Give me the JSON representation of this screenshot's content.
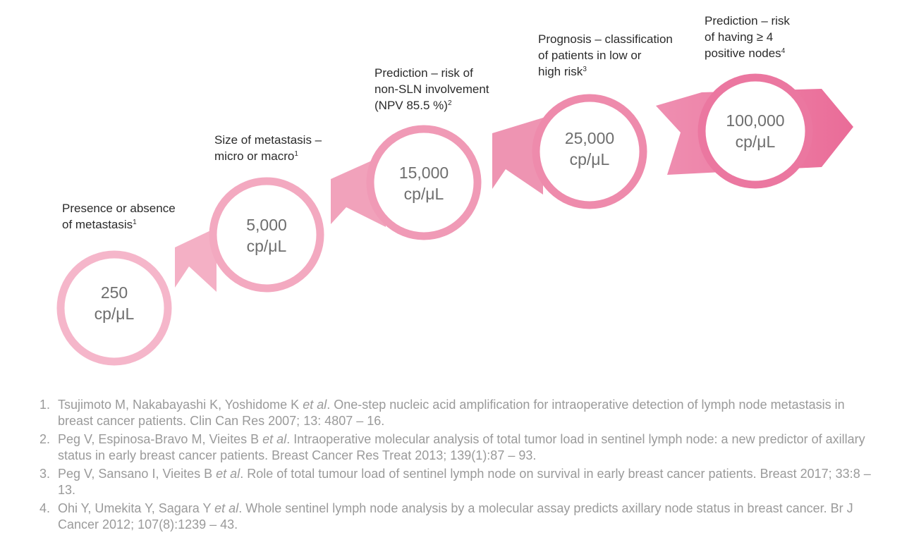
{
  "steps": [
    {
      "label_lines": [
        "Presence or absence",
        "of metastasis"
      ],
      "footnote": "1",
      "value": "250",
      "unit": "cp/μL"
    },
    {
      "label_lines": [
        "Size of metastasis –",
        "micro or macro"
      ],
      "footnote": "1",
      "value": "5,000",
      "unit": "cp/μL"
    },
    {
      "label_lines": [
        "Prediction – risk of",
        "non-SLN involvement",
        "(NPV 85.5 %)"
      ],
      "footnote": "2",
      "value": "15,000",
      "unit": "cp/μL"
    },
    {
      "label_lines": [
        "Prognosis – classification",
        "of patients in low or",
        "high risk"
      ],
      "footnote": "3",
      "value": "25,000",
      "unit": "cp/μL"
    },
    {
      "label_lines": [
        "Prediction – risk",
        "of having ≥ 4",
        "positive nodes"
      ],
      "footnote": "4",
      "value": "100,000",
      "unit": "cp/μL"
    }
  ],
  "colors": {
    "step1": "#f5b6ca",
    "step2": "#f3a9c0",
    "step3": "#f09ab6",
    "step4": "#ee8bac",
    "step5": "#eb77a0",
    "label_text": "#2b2b2b",
    "value_text": "#6e6e6e",
    "reference_text": "#9a9a9a"
  },
  "references": [
    {
      "number": "1.",
      "authors": "Tsujimoto M, Nakabayashi K, Yoshidome K",
      "etal": "et al",
      "rest": ". One-step nucleic acid amplification for intraoperative detection of lymph node metastasis in breast cancer patients. Clin Can Res 2007; 13: 4807 – 16."
    },
    {
      "number": "2.",
      "authors": "Peg V, Espinosa-Bravo M, Vieites B",
      "etal": "et al",
      "rest": ". Intraoperative molecular analysis of total tumor load in sentinel lymph node: a new predictor of axillary status in early breast cancer patients. Breast Cancer Res Treat 2013; 139(1):87 – 93."
    },
    {
      "number": "3.",
      "authors": "Peg V, Sansano I, Vieites B",
      "etal": "et al",
      "rest": ". Role of total tumour load of sentinel lymph node on survival in early breast cancer patients. Breast 2017; 33:8 – 13."
    },
    {
      "number": "4.",
      "authors": "Ohi Y, Umekita Y, Sagara Y",
      "etal": "et al",
      "rest": ". Whole sentinel lymph node analysis by a molecular assay predicts axillary node status in breast cancer. Br J Cancer 2012; 107(8):1239 – 43."
    }
  ]
}
